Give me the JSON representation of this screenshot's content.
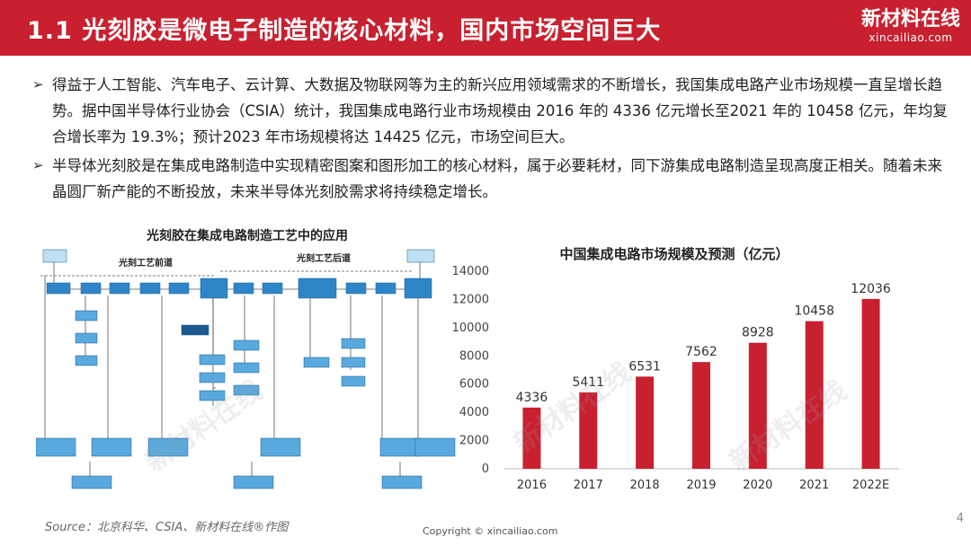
{
  "header": {
    "title": "1.1 光刻胶是微电子制造的核心材料，国内市场空间巨大",
    "brand_cn": "新材料在线",
    "brand_en": "xincailiao.com"
  },
  "bullets": [
    "得益于人工智能、汽车电子、云计算、大数据及物联网等为主的新兴应用领域需求的不断增长，我国集成电路产业市场规模一直呈增长趋势。据中国半导体行业协会（CSIA）统计，我国集成电路行业市场规模由 2016 年的 4336 亿元增长至2021 年的 10458 亿元，年均复合增长率为 19.3%；预计2023 年市场规模将达 14425 亿元，市场空间巨大。",
    "半导体光刻胶是在集成电路制造中实现精密图案和图形加工的核心材料，属于必要耗材，同下游集成电路制造呈现高度正相关。随着未来晶圆厂新产能的不断投放，未来半导体光刻胶需求将持续稳定增长。"
  ],
  "bullet_arrow": "➢",
  "flowchart": {
    "title": "光刻胶在集成电路制造工艺中的应用",
    "front_label": "光刻工艺前道",
    "back_label": "光刻工艺后道"
  },
  "chart_data": {
    "type": "bar",
    "title": "中国集成电路市场规模及预测（亿元）",
    "categories": [
      "2016",
      "2017",
      "2018",
      "2019",
      "2020",
      "2021",
      "2022E"
    ],
    "values": [
      4336,
      5411,
      6531,
      7562,
      8928,
      10458,
      12036
    ],
    "ylim": [
      0,
      14000
    ],
    "yticks": [
      0,
      2000,
      4000,
      6000,
      8000,
      10000,
      12000,
      14000
    ],
    "bar_color": "#c8202f",
    "grid": false
  },
  "footer": {
    "source": "Source：北京科华、CSIA、新材料在线®作图",
    "copyright": "Copyright © xincailiao.com",
    "page": "4"
  },
  "colors": {
    "accent": "#c8202f",
    "flow_box": "#2e86c8"
  }
}
